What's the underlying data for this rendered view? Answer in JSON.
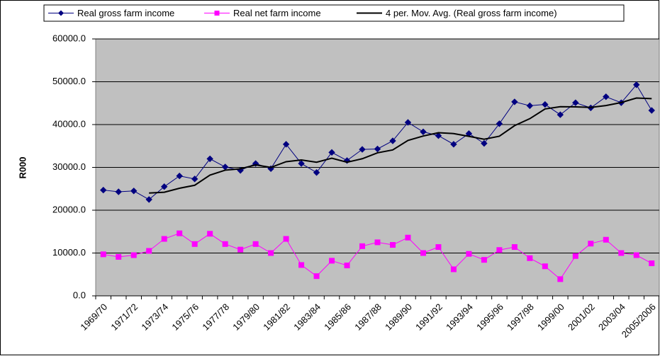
{
  "chart_data": {
    "type": "line",
    "y_label": "R000",
    "categories": [
      "1969/70",
      null,
      "1971/72",
      null,
      "1973/74",
      null,
      "1975/76",
      null,
      "1977/78",
      null,
      "1979/80",
      null,
      "1981/82",
      null,
      "1983/84",
      null,
      "1985/86",
      null,
      "1987/88",
      null,
      "1989/90",
      null,
      "1991/92",
      null,
      "1993/94",
      null,
      "1995/96",
      null,
      "1997/98",
      null,
      "1999/00",
      null,
      "2001/02",
      null,
      "2003/04",
      null,
      "2005/2006"
    ],
    "series": [
      {
        "name": "Real gross farm income",
        "color": "#000080",
        "marker": "diamond",
        "values": [
          24700,
          24300,
          24500,
          22500,
          25500,
          28000,
          27300,
          32000,
          30100,
          29300,
          30900,
          29700,
          35400,
          30900,
          28800,
          33500,
          31600,
          34200,
          34300,
          36200,
          40500,
          38300,
          37400,
          35400,
          37900,
          35600,
          40200,
          45300,
          44400,
          44700,
          42300,
          45100,
          43900,
          46500,
          45100,
          49300,
          43300
        ]
      },
      {
        "name": "Real net farm income",
        "color": "#ff00ff",
        "marker": "square",
        "values": [
          9700,
          9100,
          9500,
          10500,
          13300,
          14600,
          12100,
          14500,
          12100,
          10800,
          12100,
          10000,
          13300,
          7200,
          4600,
          8200,
          7100,
          11600,
          12500,
          11900,
          13600,
          10000,
          11400,
          6200,
          9800,
          8400,
          10700,
          11400,
          8800,
          6900,
          3900,
          9300,
          12200,
          13100,
          10000,
          9500,
          7600
        ]
      },
      {
        "name": "4 per. Mov. Avg. (Real gross farm income)",
        "color": "#000000",
        "marker": "none",
        "values": [
          null,
          null,
          null,
          24000,
          24200,
          25125,
          25825,
          28200,
          29350,
          29675,
          30575,
          30000,
          31325,
          31725,
          31200,
          32150,
          31200,
          32025,
          33400,
          34075,
          36300,
          37325,
          38100,
          37900,
          37250,
          36575,
          37275,
          39750,
          41375,
          43650,
          44175,
          44125,
          44000,
          44450,
          45150,
          46200,
          46050
        ]
      }
    ],
    "ylim": [
      0,
      60000
    ],
    "yticks": [
      {
        "value": 0,
        "label": "0.0"
      },
      {
        "value": 10000,
        "label": "10000.0"
      },
      {
        "value": 20000,
        "label": "20000.0"
      },
      {
        "value": 30000,
        "label": "30000.0"
      },
      {
        "value": 40000,
        "label": "40000.0"
      },
      {
        "value": 50000,
        "label": "50000.0"
      },
      {
        "value": 60000,
        "label": "60000.0"
      }
    ],
    "grid": true,
    "plot_background": "#c0c0c0",
    "legend": "top"
  }
}
